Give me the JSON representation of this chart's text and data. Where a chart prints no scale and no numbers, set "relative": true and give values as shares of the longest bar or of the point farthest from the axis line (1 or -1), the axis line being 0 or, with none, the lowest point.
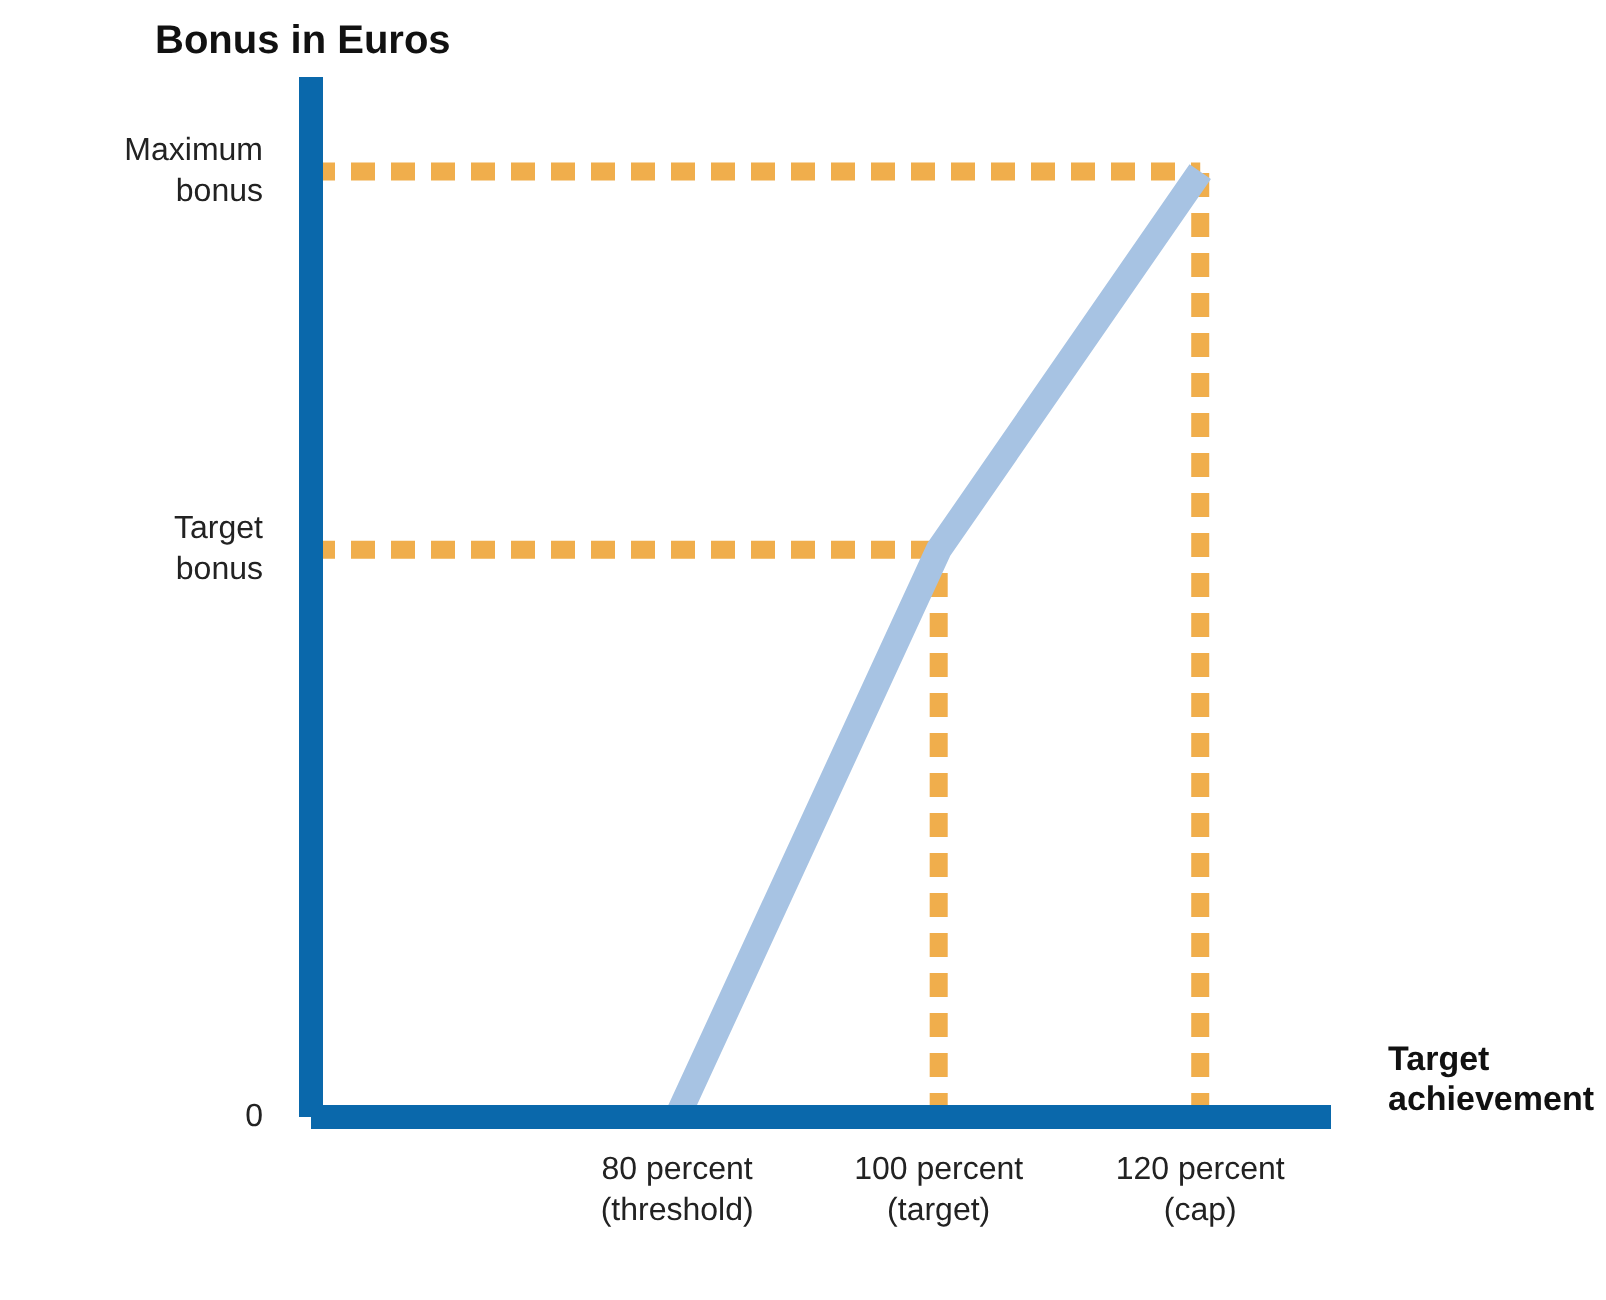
{
  "chart_data": {
    "type": "line",
    "ylabel": "Bonus in Euros",
    "xlabel": "Target achievement",
    "relative": true,
    "x": [
      80,
      100,
      120
    ],
    "series": [
      {
        "color": "#a7c3e3",
        "values": [
          0,
          0.6,
          1
        ]
      }
    ],
    "xlim": [
      52,
      130
    ],
    "xticks": [
      {
        "value": 80,
        "label": "80 percent (threshold)"
      },
      {
        "value": 100,
        "label": "100 percent (target)"
      },
      {
        "value": 120,
        "label": "120 percent (cap)"
      }
    ],
    "annotations": [
      "0"
    ],
    "ref_lines": [
      {
        "axis": "y",
        "value": 0.6,
        "label": "Target bonus",
        "color": "#f0ae4c",
        "line_style": "dashed"
      },
      {
        "axis": "y",
        "value": 1,
        "label": "Maximum bonus",
        "color": "#f0ae4c",
        "line_style": "dashed"
      },
      {
        "axis": "x",
        "value": 100,
        "color": "#f0ae4c",
        "line_style": "dashed"
      },
      {
        "axis": "x",
        "value": 120,
        "color": "#f0ae4c",
        "line_style": "dashed"
      }
    ],
    "grid": false,
    "marker": "none",
    "line_style": "solid"
  }
}
